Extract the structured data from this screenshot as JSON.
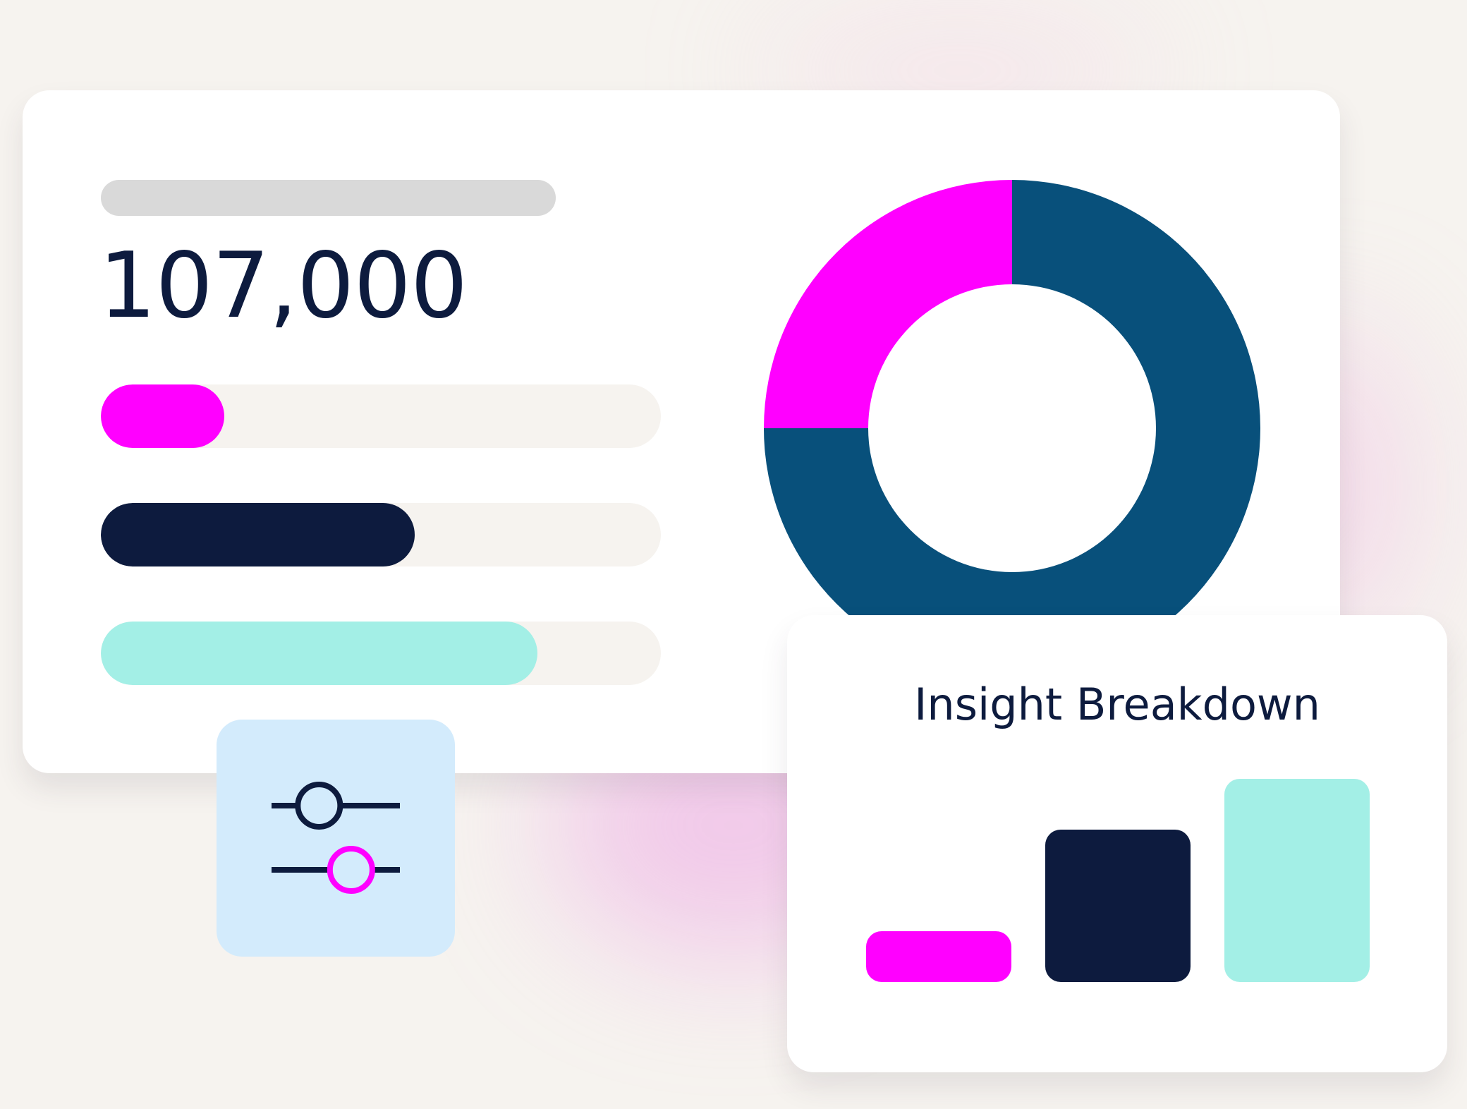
{
  "colors": {
    "magenta": "#ff00ff",
    "navy": "#0d1b3e",
    "teal": "#a3efe6",
    "donut_blue": "#08507b",
    "track": "#f6f3ef",
    "placeholder": "#d9d9d9",
    "tile": "#d3ebfc"
  },
  "summary": {
    "value": "107,000"
  },
  "progress_bars": [
    {
      "name": "magenta",
      "fill": 0.22,
      "color": "#ff00ff"
    },
    {
      "name": "navy",
      "fill": 0.56,
      "color": "#0d1b3e"
    },
    {
      "name": "teal",
      "fill": 0.78,
      "color": "#a3efe6"
    }
  ],
  "chart_data": [
    {
      "type": "pie",
      "donut": true,
      "slices": [
        {
          "value": 75,
          "color": "#08507b"
        },
        {
          "value": 25,
          "color": "#ff00ff"
        }
      ]
    },
    {
      "type": "bar",
      "title": "Insight Breakdown",
      "categories": [
        "",
        "",
        ""
      ],
      "values": [
        1,
        3,
        4
      ],
      "colors": [
        "#ff00ff",
        "#0d1b3e",
        "#a3efe6"
      ]
    }
  ],
  "filter_tile": {
    "icon": "sliders-icon",
    "slider_1_level": 0.37,
    "slider_2_level": 0.62
  }
}
